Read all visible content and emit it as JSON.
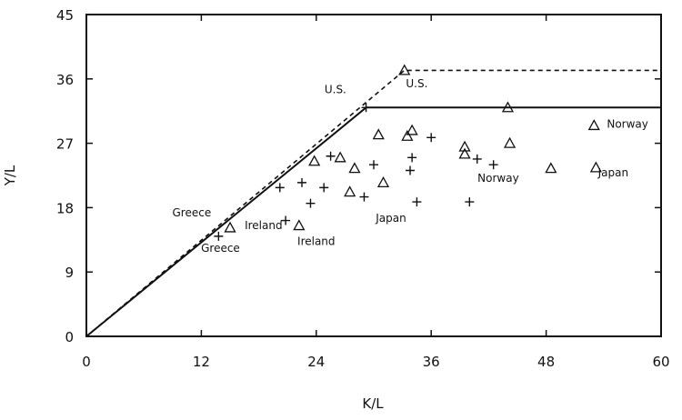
{
  "chart_data": {
    "type": "scatter",
    "title": "",
    "xlabel": "K/L",
    "ylabel": "Y/L",
    "xlim": [
      0,
      60
    ],
    "ylim": [
      0,
      45
    ],
    "xticks": [
      0,
      12,
      24,
      36,
      48,
      60
    ],
    "yticks": [
      0,
      9,
      18,
      27,
      36,
      45
    ],
    "grid": false,
    "lines": [
      {
        "style": "dashed",
        "points": [
          [
            0,
            0
          ],
          [
            33.2,
            37.2
          ],
          [
            60,
            37.2
          ]
        ]
      },
      {
        "style": "solid",
        "points": [
          [
            0,
            0
          ],
          [
            29.2,
            32.0
          ],
          [
            60,
            32.0
          ]
        ]
      }
    ],
    "series": [
      {
        "marker": "triangle",
        "points": [
          [
            33.2,
            37.2
          ],
          [
            44.0,
            32.0
          ],
          [
            53.0,
            29.5
          ],
          [
            15.0,
            15.2
          ],
          [
            22.2,
            15.5
          ],
          [
            23.8,
            24.5
          ],
          [
            26.5,
            25.0
          ],
          [
            28.0,
            23.5
          ],
          [
            27.5,
            20.2
          ],
          [
            30.5,
            28.2
          ],
          [
            31.0,
            21.5
          ],
          [
            33.5,
            28.0
          ],
          [
            34.0,
            28.8
          ],
          [
            39.5,
            26.5
          ],
          [
            39.5,
            25.5
          ],
          [
            44.2,
            27.0
          ],
          [
            48.5,
            23.5
          ],
          [
            53.2,
            23.6
          ]
        ]
      },
      {
        "marker": "plus",
        "points": [
          [
            29.2,
            32.0
          ],
          [
            13.8,
            14.0
          ],
          [
            20.8,
            16.2
          ],
          [
            20.2,
            20.8
          ],
          [
            22.5,
            21.5
          ],
          [
            23.4,
            18.6
          ],
          [
            24.8,
            20.8
          ],
          [
            25.5,
            25.2
          ],
          [
            29.0,
            19.5
          ],
          [
            30.0,
            24.0
          ],
          [
            33.8,
            23.2
          ],
          [
            34.0,
            25.0
          ],
          [
            34.5,
            18.8
          ],
          [
            36.0,
            27.8
          ],
          [
            40.0,
            18.8
          ],
          [
            40.8,
            24.8
          ],
          [
            42.5,
            24.0
          ]
        ]
      }
    ],
    "annotations": [
      {
        "text": "U.S.",
        "x": 26.0,
        "y": 34.0
      },
      {
        "text": "U.S.",
        "x": 34.5,
        "y": 34.8
      },
      {
        "text": "Norway",
        "x": 56.5,
        "y": 29.2
      },
      {
        "text": "Norway",
        "x": 43.0,
        "y": 21.6
      },
      {
        "text": "Japan",
        "x": 55.0,
        "y": 22.4
      },
      {
        "text": "Japan",
        "x": 31.8,
        "y": 16.0
      },
      {
        "text": "Greece",
        "x": 11.0,
        "y": 16.8
      },
      {
        "text": "Greece",
        "x": 14.0,
        "y": 11.8
      },
      {
        "text": "Ireland",
        "x": 18.5,
        "y": 15.0
      },
      {
        "text": "Ireland",
        "x": 24.0,
        "y": 12.8
      }
    ]
  }
}
